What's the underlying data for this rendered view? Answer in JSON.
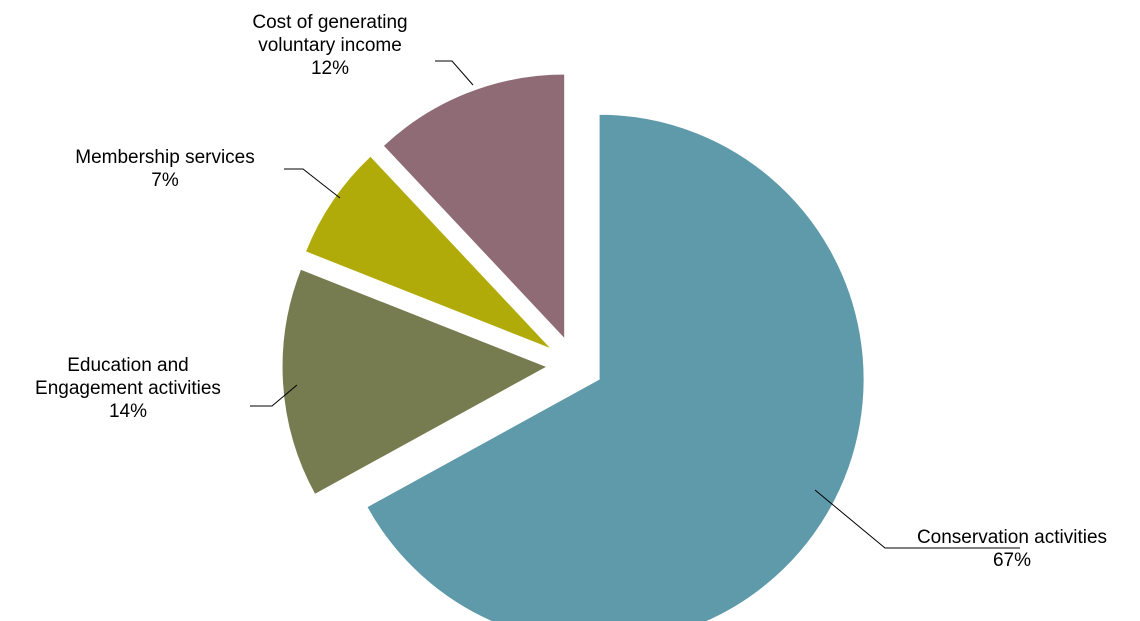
{
  "chart_data": {
    "type": "pie",
    "title": "",
    "exploded": true,
    "slices": [
      {
        "label_lines": [
          "Conservation activities"
        ],
        "value": 67,
        "value_label": "67%",
        "color": "#5f9aaa"
      },
      {
        "label_lines": [
          "Education and",
          "Engagement activities"
        ],
        "value": 14,
        "value_label": "14%",
        "color": "#767c4f"
      },
      {
        "label_lines": [
          "Membership services"
        ],
        "value": 7,
        "value_label": "7%",
        "color": "#b1ab09"
      },
      {
        "label_lines": [
          "Cost of generating",
          "voluntary income"
        ],
        "value": 12,
        "value_label": "12%",
        "color": "#8f6b76"
      }
    ]
  }
}
